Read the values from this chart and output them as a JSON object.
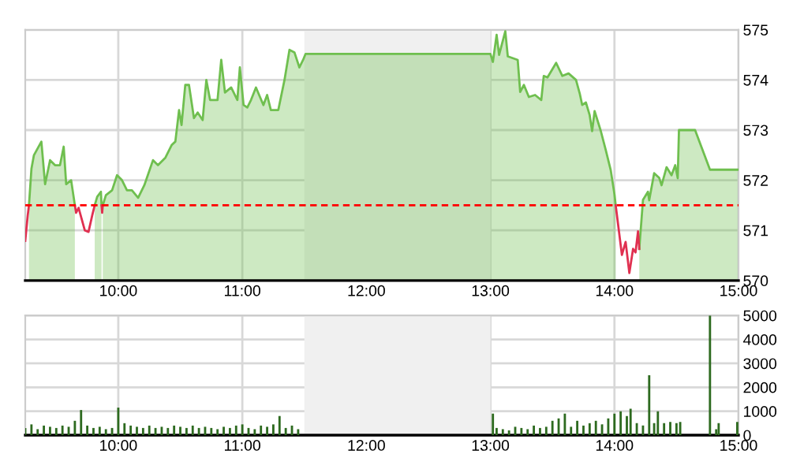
{
  "chart_data": [
    {
      "type": "area",
      "series": [
        {
          "type": "area",
          "color": "#6fbf4f",
          "x": [
            9.28,
            9.3,
            9.32,
            9.38,
            9.41,
            9.45,
            9.49,
            9.53,
            9.56,
            9.58,
            9.62,
            9.65,
            null,
            9.81,
            9.83,
            9.86,
            9.865,
            null,
            9.875,
            9.9,
            9.95,
            9.99,
            10.03,
            10.07,
            10.11,
            10.16,
            10.21,
            10.28,
            10.32,
            10.38,
            10.43,
            10.46,
            10.49,
            10.51,
            10.54,
            10.57,
            10.61,
            10.64,
            10.68,
            10.71,
            10.74,
            10.8,
            10.83,
            10.86,
            10.91,
            10.96,
            10.98,
            11.01,
            11.04,
            11.07,
            11.11,
            11.17,
            11.2,
            11.23,
            11.29,
            11.34,
            11.38,
            11.42,
            11.46,
            11.49,
            11.51,
            13.0,
            13.02,
            13.05,
            13.07,
            13.12,
            13.14,
            13.22,
            13.24,
            13.27,
            13.31,
            13.36,
            13.41,
            13.43,
            13.46,
            13.53,
            13.58,
            13.63,
            13.69,
            13.72,
            13.74,
            13.77,
            13.8,
            13.82,
            13.84,
            13.89,
            13.93,
            13.97,
            14.0,
            14.01,
            null,
            14.2,
            14.23,
            14.27,
            14.28,
            14.32,
            14.36,
            14.38,
            14.42,
            14.46,
            14.49,
            14.51,
            14.52,
            14.65,
            14.77,
            15.0
          ],
          "values": [
            571.5,
            572.23,
            572.5,
            572.77,
            571.92,
            572.4,
            572.3,
            572.3,
            572.67,
            571.92,
            572.0,
            571.5,
            null,
            571.5,
            571.67,
            571.77,
            571.5,
            null,
            571.5,
            571.7,
            571.8,
            572.1,
            572.0,
            571.8,
            571.8,
            571.65,
            571.9,
            572.4,
            572.3,
            572.45,
            572.7,
            572.77,
            573.4,
            573.1,
            573.9,
            573.9,
            573.24,
            573.35,
            573.2,
            574.0,
            573.6,
            573.6,
            574.4,
            573.75,
            573.85,
            573.6,
            574.25,
            573.5,
            573.45,
            573.6,
            573.85,
            573.5,
            573.7,
            573.4,
            573.4,
            574.0,
            574.6,
            574.55,
            574.25,
            574.4,
            574.52,
            574.52,
            574.36,
            574.9,
            574.5,
            574.97,
            574.47,
            574.4,
            573.76,
            573.9,
            573.66,
            573.7,
            573.6,
            574.08,
            574.05,
            574.34,
            574.08,
            574.13,
            574.0,
            573.73,
            573.5,
            573.55,
            573.3,
            572.98,
            573.38,
            572.98,
            572.6,
            572.2,
            571.72,
            571.5,
            null,
            570.63,
            571.61,
            571.77,
            571.6,
            572.14,
            572.05,
            571.9,
            572.26,
            572.1,
            572.3,
            572.04,
            573.0,
            573.0,
            572.21,
            572.21
          ]
        },
        {
          "type": "line",
          "color": "#e03050",
          "x": [
            9.25,
            9.27,
            9.28,
            null,
            9.65,
            9.66,
            9.68,
            9.73,
            9.76,
            9.79,
            9.81,
            null,
            9.865,
            9.87,
            9.875,
            null,
            14.01,
            14.06,
            14.09,
            14.12,
            14.15,
            14.17,
            14.19,
            14.2
          ],
          "values": [
            570.79,
            571.3,
            571.5,
            null,
            571.5,
            571.35,
            571.45,
            571.0,
            570.97,
            571.3,
            571.5,
            null,
            571.5,
            571.35,
            571.5,
            null,
            571.5,
            570.51,
            570.77,
            570.15,
            570.63,
            570.56,
            570.98,
            570.63
          ]
        }
      ],
      "xlim": [
        9.25,
        15
      ],
      "xticks": [
        {
          "value": 10,
          "label": "10:00"
        },
        {
          "value": 11,
          "label": "11:00"
        },
        {
          "value": 12,
          "label": "12:00"
        },
        {
          "value": 13,
          "label": "13:00"
        },
        {
          "value": 14,
          "label": "14:00"
        },
        {
          "value": 15,
          "label": "15:00"
        }
      ],
      "ylim": [
        570,
        575
      ],
      "yticks": [
        570,
        571,
        572,
        573,
        574,
        575
      ],
      "grid": true,
      "ref_lines": [
        {
          "axis": "y",
          "value": 571.5,
          "color": "#ff0000",
          "line_style": "dashed"
        }
      ],
      "bands": [
        {
          "axis": "x",
          "from": 11.5,
          "to": 13.0,
          "color": "#f0f0f0"
        }
      ]
    },
    {
      "type": "bar",
      "x": [
        9.25,
        9.3,
        9.35,
        9.4,
        9.45,
        9.5,
        9.55,
        9.6,
        9.65,
        9.7,
        9.75,
        9.8,
        9.85,
        9.9,
        9.95,
        10.0,
        10.05,
        10.1,
        10.15,
        10.2,
        10.25,
        10.3,
        10.35,
        10.4,
        10.45,
        10.5,
        10.55,
        10.6,
        10.65,
        10.7,
        10.75,
        10.8,
        10.85,
        10.9,
        10.95,
        11.0,
        11.05,
        11.1,
        11.15,
        11.2,
        11.25,
        11.3,
        11.35,
        11.4,
        11.45,
        13.02,
        13.05,
        13.1,
        13.15,
        13.2,
        13.25,
        13.3,
        13.35,
        13.4,
        13.45,
        13.5,
        13.55,
        13.6,
        13.65,
        13.7,
        13.75,
        13.8,
        13.85,
        13.9,
        13.95,
        14.0,
        14.05,
        14.1,
        14.13,
        14.18,
        14.23,
        14.28,
        14.32,
        14.35,
        14.4,
        14.45,
        14.5,
        14.53,
        14.63,
        14.77,
        14.82,
        14.84,
        14.99
      ],
      "values": [
        300,
        450,
        250,
        400,
        350,
        300,
        400,
        350,
        600,
        1050,
        400,
        300,
        350,
        250,
        300,
        1150,
        500,
        400,
        350,
        300,
        400,
        300,
        350,
        300,
        400,
        350,
        300,
        400,
        300,
        350,
        300,
        250,
        350,
        300,
        400,
        450,
        300,
        250,
        400,
        350,
        450,
        800,
        300,
        400,
        250,
        900,
        300,
        250,
        200,
        350,
        300,
        250,
        400,
        300,
        350,
        600,
        700,
        900,
        350,
        600,
        400,
        500,
        600,
        450,
        700,
        900,
        1000,
        800,
        1100,
        500,
        400,
        2500,
        500,
        1000,
        500,
        550,
        500,
        550,
        null,
        5000,
        250,
        500,
        550
      ],
      "color": "#2d6a1f",
      "xlim": [
        9.25,
        15
      ],
      "xticks": [
        {
          "value": 10,
          "label": "10:00"
        },
        {
          "value": 11,
          "label": "11:00"
        },
        {
          "value": 12,
          "label": "12:00"
        },
        {
          "value": 13,
          "label": "13:00"
        },
        {
          "value": 14,
          "label": "14:00"
        },
        {
          "value": 15,
          "label": "15:00"
        }
      ],
      "ylim": [
        0,
        5000
      ],
      "yticks": [
        0,
        1000,
        2000,
        3000,
        4000,
        5000
      ],
      "grid": true,
      "bands": [
        {
          "axis": "x",
          "from": 11.5,
          "to": 13.0,
          "color": "#f0f0f0"
        }
      ]
    }
  ]
}
